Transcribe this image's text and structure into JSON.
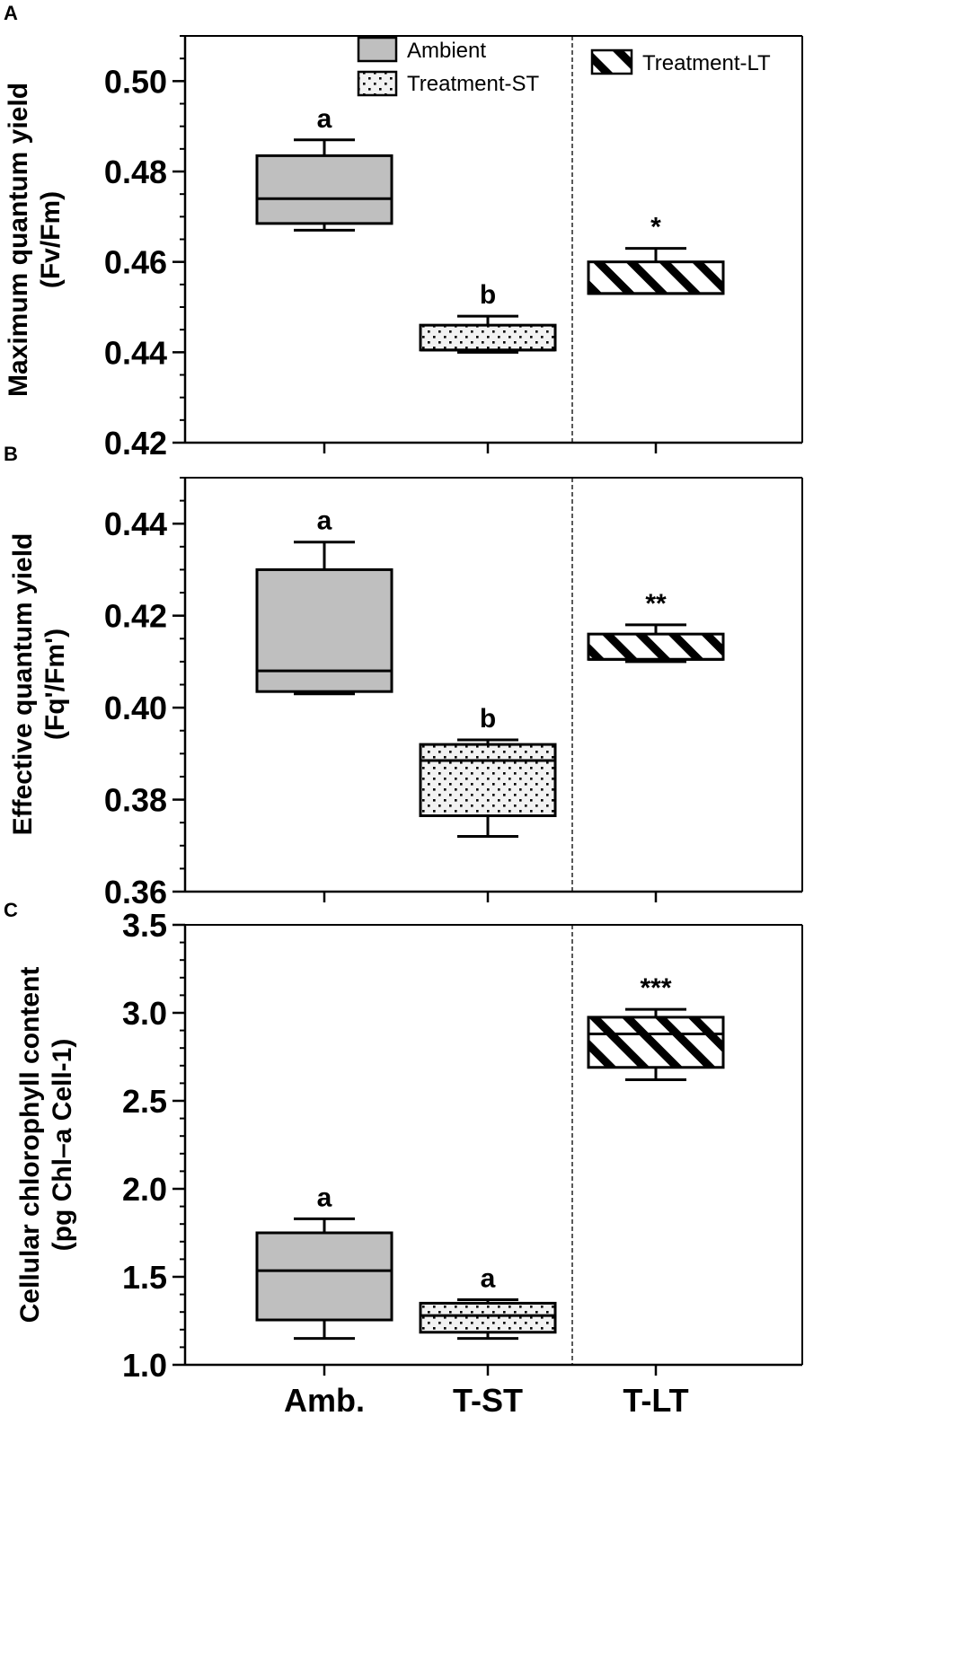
{
  "legend": {
    "ambient": "Ambient",
    "treatment_st": "Treatment-ST",
    "treatment_lt": "Treatment-LT"
  },
  "groups": [
    "Amb.",
    "T-ST",
    "T-LT"
  ],
  "colors": {
    "ambient_fill": "#bfbfbf",
    "st_fill": "#f2f2f2",
    "lt_fill": "#ffffff",
    "stroke": "#000000"
  },
  "chart_data": [
    {
      "panel_label": "A",
      "type": "box",
      "ylabel_line1": "Maximum quantum yield",
      "ylabel_line2": "(Fv/Fm)",
      "ylim": [
        0.42,
        0.51
      ],
      "yticks": [
        "0.42",
        "0.44",
        "0.46",
        "0.48",
        "0.50"
      ],
      "tick_values": [
        0.42,
        0.44,
        0.46,
        0.48,
        0.5
      ],
      "minor_step": 0.005,
      "decimals": 2,
      "categories": [
        "Amb.",
        "T-ST",
        "T-LT"
      ],
      "boxes": [
        {
          "name": "Ambient",
          "min": 0.467,
          "q1": 0.4685,
          "median": 0.474,
          "q3": 0.4835,
          "max": 0.487,
          "label": "a"
        },
        {
          "name": "Treatment-ST",
          "min": 0.44,
          "q1": 0.4405,
          "median": 0.4405,
          "q3": 0.446,
          "max": 0.448,
          "label": "b"
        },
        {
          "name": "Treatment-LT",
          "min": 0.453,
          "q1": 0.453,
          "median": 0.453,
          "q3": 0.46,
          "max": 0.463,
          "label": "*"
        }
      ]
    },
    {
      "panel_label": "B",
      "type": "box",
      "ylabel_line1": "Effective quantum yield",
      "ylabel_line2": "(Fq'/Fm')",
      "ylim": [
        0.36,
        0.45
      ],
      "yticks": [
        "0.36",
        "0.38",
        "0.40",
        "0.42",
        "0.44"
      ],
      "tick_values": [
        0.36,
        0.38,
        0.4,
        0.42,
        0.44
      ],
      "minor_step": 0.005,
      "decimals": 2,
      "categories": [
        "Amb.",
        "T-ST",
        "T-LT"
      ],
      "boxes": [
        {
          "name": "Ambient",
          "min": 0.403,
          "q1": 0.4035,
          "median": 0.408,
          "q3": 0.43,
          "max": 0.436,
          "label": "a"
        },
        {
          "name": "Treatment-ST",
          "min": 0.372,
          "q1": 0.3765,
          "median": 0.3885,
          "q3": 0.392,
          "max": 0.393,
          "label": "b"
        },
        {
          "name": "Treatment-LT",
          "min": 0.41,
          "q1": 0.4105,
          "median": 0.4105,
          "q3": 0.416,
          "max": 0.418,
          "label": "**"
        }
      ]
    },
    {
      "panel_label": "C",
      "type": "box",
      "ylabel_line1": "Cellular chlorophyll content",
      "ylabel_line2": "(pg Chl–a Cell-1)",
      "ylim": [
        1.0,
        3.5
      ],
      "yticks": [
        "1.0",
        "1.5",
        "2.0",
        "2.5",
        "3.0",
        "3.5"
      ],
      "tick_values": [
        1.0,
        1.5,
        2.0,
        2.5,
        3.0,
        3.5
      ],
      "minor_step": 0.1,
      "decimals": 1,
      "categories": [
        "Amb.",
        "T-ST",
        "T-LT"
      ],
      "boxes": [
        {
          "name": "Ambient",
          "min": 1.15,
          "q1": 1.255,
          "median": 1.535,
          "q3": 1.75,
          "max": 1.83,
          "label": "a"
        },
        {
          "name": "Treatment-ST",
          "min": 1.15,
          "q1": 1.185,
          "median": 1.28,
          "q3": 1.35,
          "max": 1.37,
          "label": "a"
        },
        {
          "name": "Treatment-LT",
          "min": 2.62,
          "q1": 2.69,
          "median": 2.88,
          "q3": 2.975,
          "max": 3.02,
          "label": "***"
        }
      ]
    }
  ]
}
